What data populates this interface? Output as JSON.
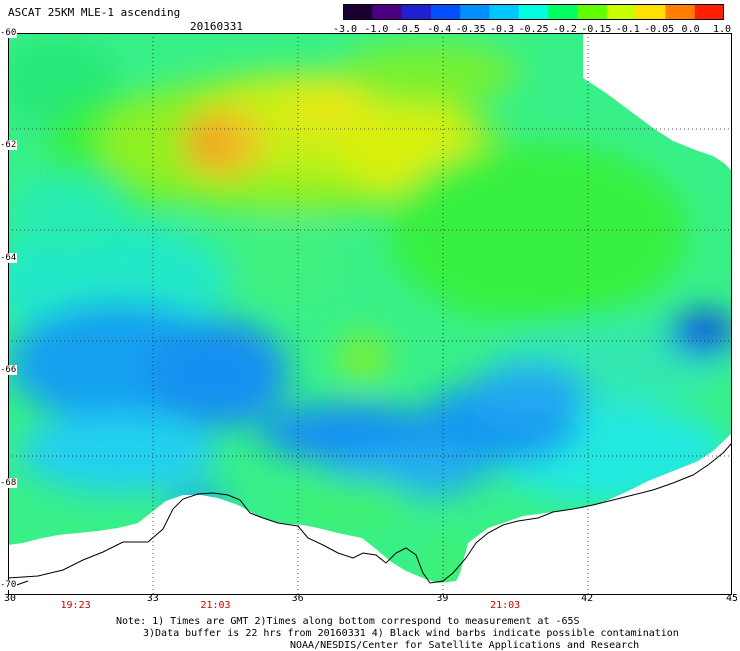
{
  "header": {
    "title": "ASCAT 25KM MLE-1 ascending",
    "date": "20160331"
  },
  "colorbar": {
    "labels": [
      "-3.0",
      "-1.0",
      "-0.5",
      "-0.4",
      "-0.35",
      "-0.3",
      "-0.25",
      "-0.2",
      "-0.15",
      "-0.1",
      "-0.05",
      "0.0",
      "1.0"
    ],
    "colors": [
      "#1a0030",
      "#4b0082",
      "#2020d0",
      "#0050ff",
      "#0090ff",
      "#00c8ff",
      "#00ffe0",
      "#00ff60",
      "#60ff00",
      "#c8ff00",
      "#ffe000",
      "#ff8000",
      "#ff2000"
    ]
  },
  "map": {
    "lon_range": [
      30,
      45
    ],
    "lat_range": [
      -60,
      -70
    ],
    "lon_ticks": [
      "30",
      "33",
      "36",
      "39",
      "42",
      "45"
    ],
    "lat_ticks": [
      "-60",
      "-62",
      "-64",
      "-66",
      "-68",
      "-70"
    ],
    "grid": "dotted",
    "field_description": "MLE values",
    "coastline_color": "#000000"
  },
  "times": [
    {
      "label": "19:23",
      "lon": 31.4
    },
    {
      "label": "21:03",
      "lon": 34.3
    },
    {
      "label": "21:03",
      "lon": 40.3
    }
  ],
  "notes": {
    "line1": "Note: 1) Times are GMT 2)Times along bottom correspond to measurement at -65S",
    "line2": "3)Data buffer is 22 hrs from 20160331 4) Black wind barbs indicate possible contamination",
    "line3": "NOAA/NESDIS/Center for Satellite Applications and Research"
  }
}
